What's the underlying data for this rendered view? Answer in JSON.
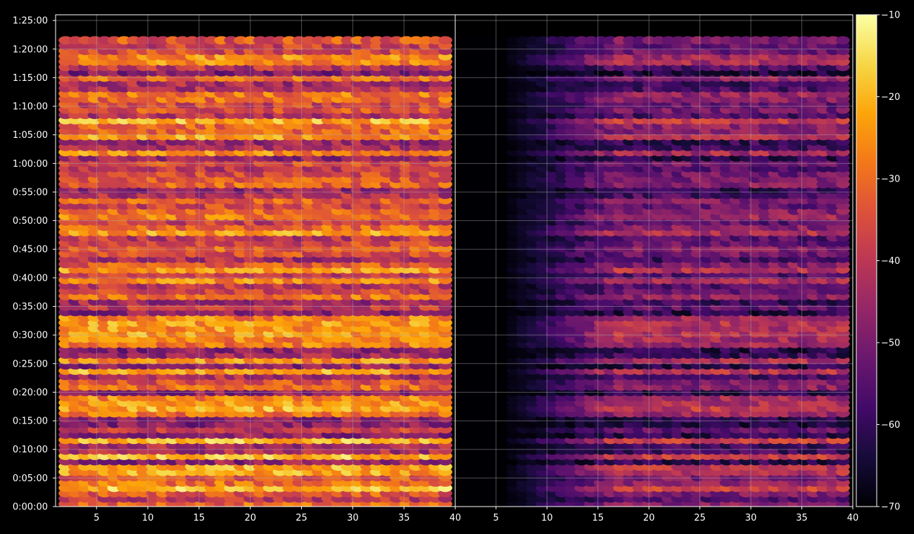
{
  "chart_data": {
    "type": "heatmap",
    "panels": [
      {
        "x_ticks": [
          5,
          10,
          15,
          20,
          25,
          30,
          35,
          40
        ],
        "xlim": [
          1,
          40
        ],
        "data_x_range": [
          1.5,
          39.5
        ]
      },
      {
        "x_ticks": [
          5,
          10,
          15,
          20,
          25,
          30,
          35,
          40
        ],
        "xlim": [
          1,
          40
        ],
        "data_x_range": [
          1.5,
          39.5
        ]
      }
    ],
    "y_ticks": [
      "0:00:00",
      "0:05:00",
      "0:10:00",
      "0:15:00",
      "0:20:00",
      "0:25:00",
      "0:30:00",
      "0:35:00",
      "0:40:00",
      "0:45:00",
      "0:50:00",
      "0:55:00",
      "1:00:00",
      "1:05:00",
      "1:10:00",
      "1:15:00",
      "1:20:00",
      "1:25:00"
    ],
    "ylim": [
      "0:00:00",
      "1:26:00"
    ],
    "data_y_range": [
      "0:00:00",
      "1:22:00"
    ],
    "grid": true,
    "colorbar": {
      "ticks": [
        "−10",
        "−20",
        "−30",
        "−40",
        "−50",
        "−60",
        "−70"
      ],
      "range": [
        -70,
        -10
      ],
      "colormap": "inferno"
    },
    "colors": {
      "background": "#000000",
      "axis": "#ffffff",
      "grid": "#b0b0b0"
    }
  }
}
